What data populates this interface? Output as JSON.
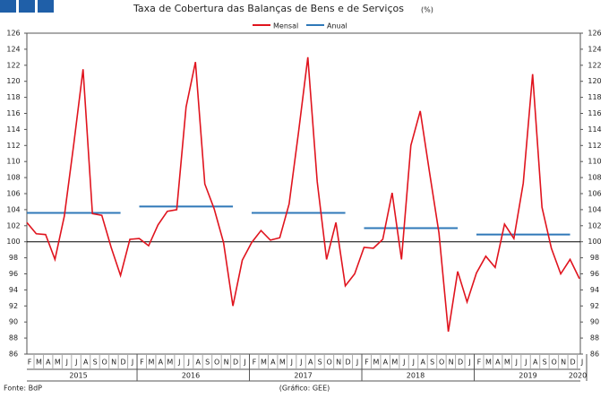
{
  "chart_data": {
    "type": "line",
    "title": "Taxa de Cobertura das Balanças de Bens e de Serviços",
    "title_unit": "(%)",
    "categories": [
      "F",
      "M",
      "A",
      "M",
      "J",
      "J",
      "A",
      "S",
      "O",
      "N",
      "D",
      "J",
      "F",
      "M",
      "A",
      "M",
      "J",
      "J",
      "A",
      "S",
      "O",
      "N",
      "D",
      "J",
      "F",
      "M",
      "A",
      "M",
      "J",
      "J",
      "A",
      "S",
      "O",
      "N",
      "D",
      "J",
      "F",
      "M",
      "A",
      "M",
      "J",
      "J",
      "A",
      "S",
      "O",
      "N",
      "D",
      "J",
      "F",
      "M",
      "A",
      "M",
      "J",
      "J",
      "A",
      "S",
      "O",
      "N",
      "D",
      "J"
    ],
    "years": [
      "2015",
      "2016",
      "2017",
      "2018",
      "2019",
      "2020"
    ],
    "series": [
      {
        "name": "Mensal",
        "color": "#e0141e",
        "values": [
          102.4,
          101.0,
          100.9,
          97.8,
          103.2,
          112.1,
          121.5,
          103.5,
          103.3,
          99.3,
          95.8,
          100.3,
          100.4,
          99.5,
          102.1,
          103.8,
          104.0,
          116.8,
          122.4,
          107.2,
          104.1,
          99.9,
          92.0,
          97.7,
          99.9,
          101.4,
          100.2,
          100.5,
          104.7,
          113.6,
          123.0,
          107.5,
          97.8,
          102.4,
          94.5,
          96.0,
          99.3,
          99.2,
          100.3,
          106.1,
          97.8,
          112.0,
          116.3,
          108.6,
          101.1,
          88.8,
          96.3,
          92.5,
          96.1,
          98.2,
          96.8,
          102.2,
          100.4,
          107.3,
          120.9,
          104.3,
          99.2,
          96.0,
          97.8,
          95.4
        ]
      }
    ],
    "annual": {
      "name": "Anual",
      "color": "#2f78b8",
      "values": [
        103.6,
        104.4,
        103.6,
        101.7,
        100.9
      ]
    },
    "reference_line": 100,
    "ylim": [
      86,
      126
    ],
    "yticks": [
      86,
      88,
      90,
      92,
      94,
      96,
      98,
      100,
      102,
      104,
      106,
      108,
      110,
      112,
      114,
      116,
      118,
      120,
      122,
      124,
      126
    ],
    "source": "Fonte: BdP",
    "credit": "(Gráfico: GEE)"
  }
}
